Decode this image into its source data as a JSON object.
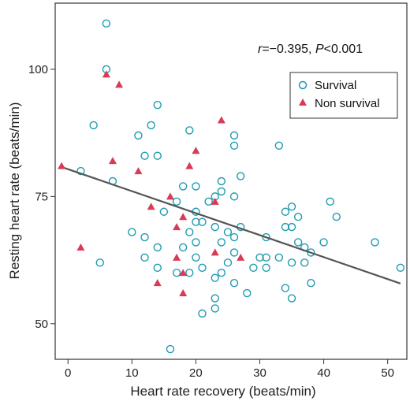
{
  "chart_data": {
    "type": "scatter",
    "xlabel": "Heart rate recovery (beats/min)",
    "ylabel": "Resting heart rate (beats/min)",
    "xlim": [
      -2,
      53
    ],
    "ylim": [
      43,
      113
    ],
    "xticks": [
      0,
      10,
      20,
      30,
      40,
      50
    ],
    "yticks": [
      50,
      75,
      100
    ],
    "grid": false,
    "legend_position": "top-right",
    "annotation": {
      "r_sym": "r",
      "r_val": "=−0.395, ",
      "p_sym": "P",
      "p_val": "<0.001"
    },
    "series": [
      {
        "name": "Survival",
        "marker": "open-circle",
        "color": "#1f9bb0",
        "points": [
          [
            6,
            109
          ],
          [
            6,
            100
          ],
          [
            14,
            93
          ],
          [
            4,
            89
          ],
          [
            13,
            89
          ],
          [
            11,
            87
          ],
          [
            19,
            88
          ],
          [
            26,
            87
          ],
          [
            26,
            85
          ],
          [
            33,
            85
          ],
          [
            12,
            83
          ],
          [
            14,
            83
          ],
          [
            2,
            80
          ],
          [
            7,
            78
          ],
          [
            24,
            78
          ],
          [
            27,
            79
          ],
          [
            18,
            77
          ],
          [
            20,
            77
          ],
          [
            24,
            76
          ],
          [
            22,
            74
          ],
          [
            23,
            75
          ],
          [
            17,
            74
          ],
          [
            26,
            75
          ],
          [
            20,
            72
          ],
          [
            15,
            72
          ],
          [
            20,
            70
          ],
          [
            21,
            70
          ],
          [
            35,
            73
          ],
          [
            34,
            72
          ],
          [
            41,
            74
          ],
          [
            36,
            71
          ],
          [
            42,
            71
          ],
          [
            19,
            68
          ],
          [
            23,
            69
          ],
          [
            25,
            68
          ],
          [
            27,
            69
          ],
          [
            34,
            69
          ],
          [
            35,
            69
          ],
          [
            10,
            68
          ],
          [
            12,
            67
          ],
          [
            20,
            66
          ],
          [
            24,
            66
          ],
          [
            26,
            67
          ],
          [
            31,
            67
          ],
          [
            36,
            66
          ],
          [
            37,
            65
          ],
          [
            40,
            66
          ],
          [
            48,
            66
          ],
          [
            14,
            65
          ],
          [
            18,
            65
          ],
          [
            38,
            64
          ],
          [
            12,
            63
          ],
          [
            20,
            63
          ],
          [
            26,
            64
          ],
          [
            30,
            63
          ],
          [
            31,
            63
          ],
          [
            33,
            63
          ],
          [
            35,
            62
          ],
          [
            37,
            62
          ],
          [
            5,
            62
          ],
          [
            14,
            61
          ],
          [
            21,
            61
          ],
          [
            25,
            62
          ],
          [
            29,
            61
          ],
          [
            31,
            61
          ],
          [
            52,
            61
          ],
          [
            17,
            60
          ],
          [
            19,
            60
          ],
          [
            24,
            60
          ],
          [
            23,
            59
          ],
          [
            26,
            58
          ],
          [
            38,
            58
          ],
          [
            28,
            56
          ],
          [
            34,
            57
          ],
          [
            23,
            55
          ],
          [
            35,
            55
          ],
          [
            23,
            53
          ],
          [
            21,
            52
          ],
          [
            16,
            45
          ]
        ]
      },
      {
        "name": "Non survival",
        "marker": "filled-triangle",
        "color": "#d93a55",
        "points": [
          [
            6,
            99
          ],
          [
            8,
            97
          ],
          [
            24,
            90
          ],
          [
            20,
            84
          ],
          [
            7,
            82
          ],
          [
            19,
            81
          ],
          [
            -1,
            81
          ],
          [
            11,
            80
          ],
          [
            16,
            75
          ],
          [
            23,
            74
          ],
          [
            13,
            73
          ],
          [
            18,
            71
          ],
          [
            17,
            69
          ],
          [
            2,
            65
          ],
          [
            23,
            64
          ],
          [
            17,
            63
          ],
          [
            27,
            63
          ],
          [
            18,
            60
          ],
          [
            14,
            58
          ],
          [
            18,
            56
          ]
        ]
      }
    ],
    "trendline": {
      "x": [
        -1,
        52
      ],
      "y": [
        80.8,
        57.9
      ],
      "color": "#555555"
    }
  }
}
